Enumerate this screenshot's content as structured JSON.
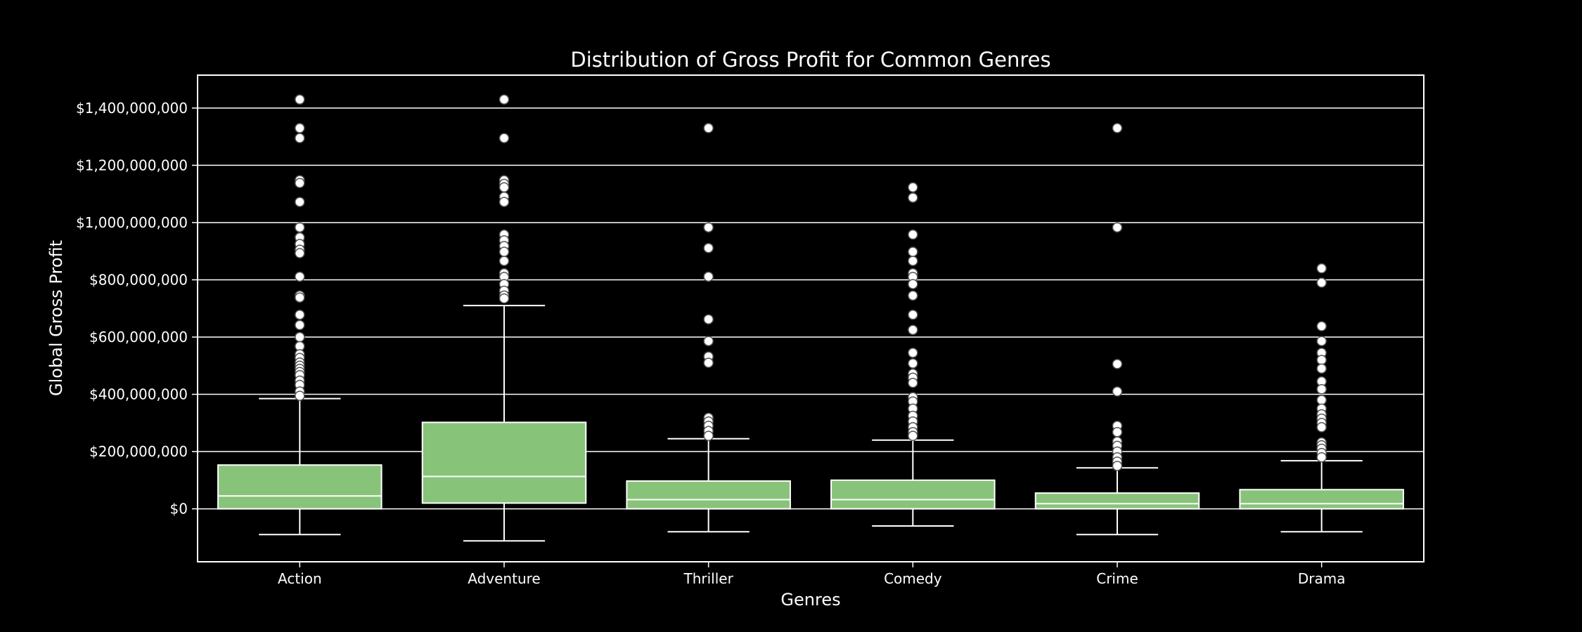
{
  "chart_data": {
    "type": "box",
    "title": "Distribution of Gross Profit for Common Genres",
    "xlabel": "Genres",
    "ylabel": "Global Gross Profit",
    "ylim": [
      -185000000,
      1515000000
    ],
    "yticks": [
      0,
      200000000,
      400000000,
      600000000,
      800000000,
      1000000000,
      1200000000,
      1400000000
    ],
    "ytick_labels": [
      "$0",
      "$200,000,000",
      "$400,000,000",
      "$600,000,000",
      "$800,000,000",
      "$1,000,000,000",
      "$1,200,000,000",
      "$1,400,000,000"
    ],
    "grid": "horizontal",
    "colors": {
      "box": "#88c37a",
      "line": "#ffffff",
      "background": "#000000"
    },
    "categories": [
      "Action",
      "Adventure",
      "Thriller",
      "Comedy",
      "Crime",
      "Drama"
    ],
    "boxes": [
      {
        "category": "Action",
        "whisker_low": -90000000,
        "q1": 0,
        "median": 45000000,
        "q3": 153000000,
        "whisker_high": 385000000,
        "outliers": [
          1430000000,
          1330000000,
          1295000000,
          1148000000,
          1138000000,
          1072000000,
          983000000,
          948000000,
          925000000,
          905000000,
          893000000,
          811000000,
          745000000,
          738000000,
          678000000,
          642000000,
          600000000,
          568000000,
          540000000,
          527000000,
          511000000,
          500000000,
          489000000,
          478000000,
          467000000,
          448000000,
          433000000,
          410000000,
          395000000
        ]
      },
      {
        "category": "Adventure",
        "whisker_low": -112000000,
        "q1": 20000000,
        "median": 113000000,
        "q3": 302000000,
        "whisker_high": 710000000,
        "outliers": [
          1430000000,
          1295000000,
          1148000000,
          1135000000,
          1123000000,
          1090000000,
          1072000000,
          958000000,
          938000000,
          918000000,
          898000000,
          866000000,
          823000000,
          810000000,
          785000000,
          762000000,
          745000000,
          735000000
        ]
      },
      {
        "category": "Thriller",
        "whisker_low": -80000000,
        "q1": 0,
        "median": 32000000,
        "q3": 97000000,
        "whisker_high": 245000000,
        "outliers": [
          1330000000,
          983000000,
          911000000,
          811000000,
          662000000,
          586000000,
          532000000,
          510000000,
          318000000,
          305000000,
          290000000,
          272000000,
          255000000
        ]
      },
      {
        "category": "Comedy",
        "whisker_low": -60000000,
        "q1": 0,
        "median": 32000000,
        "q3": 100000000,
        "whisker_high": 240000000,
        "outliers": [
          1123000000,
          1087000000,
          958000000,
          898000000,
          866000000,
          823000000,
          810000000,
          785000000,
          745000000,
          678000000,
          625000000,
          545000000,
          508000000,
          472000000,
          458000000,
          440000000,
          390000000,
          375000000,
          350000000,
          325000000,
          305000000,
          285000000,
          268000000,
          255000000
        ]
      },
      {
        "category": "Crime",
        "whisker_low": -90000000,
        "q1": 0,
        "median": 18000000,
        "q3": 55000000,
        "whisker_high": 143000000,
        "outliers": [
          1330000000,
          983000000,
          506000000,
          410000000,
          290000000,
          268000000,
          235000000,
          220000000,
          200000000,
          180000000,
          165000000,
          150000000
        ]
      },
      {
        "category": "Drama",
        "whisker_low": -80000000,
        "q1": 0,
        "median": 18000000,
        "q3": 67000000,
        "whisker_high": 168000000,
        "outliers": [
          840000000,
          790000000,
          638000000,
          586000000,
          545000000,
          520000000,
          490000000,
          445000000,
          418000000,
          380000000,
          350000000,
          330000000,
          315000000,
          300000000,
          285000000,
          232000000,
          222000000,
          210000000,
          195000000,
          180000000
        ]
      }
    ]
  }
}
